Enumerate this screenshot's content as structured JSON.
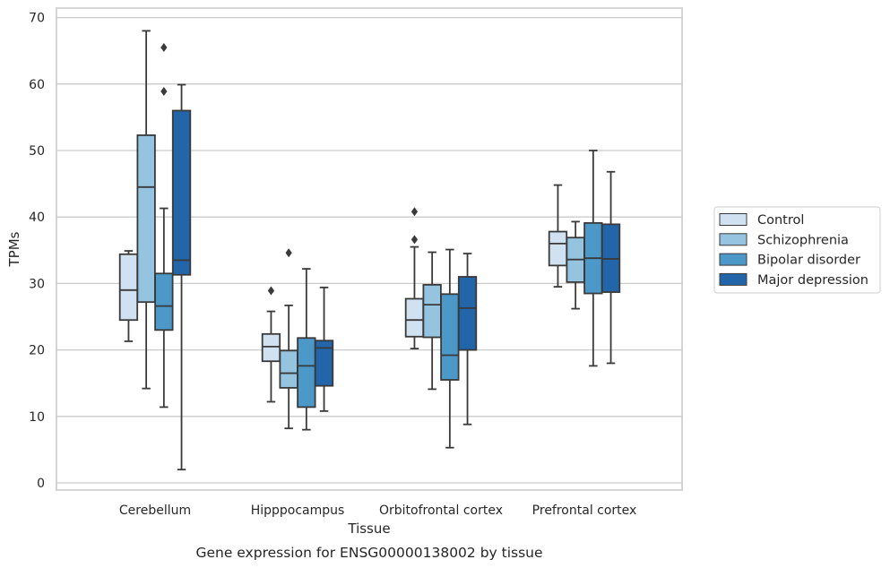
{
  "chart_data": {
    "type": "boxplot",
    "caption": "Gene expression for ENSG00000138002 by tissue",
    "xlabel": "Tissue",
    "ylabel": "TPMs",
    "ylim": [
      -1,
      71.5
    ],
    "yticks": [
      0,
      10,
      20,
      30,
      40,
      50,
      60,
      70
    ],
    "grid": "horizontal",
    "legend_position": "right",
    "categories": [
      "Cerebellum",
      "Hipppocampus",
      "Orbitofrontal cortex",
      "Prefrontal cortex"
    ],
    "series": [
      {
        "name": "Control",
        "color": "#d0e1f2",
        "boxes": [
          {
            "whisker_low": 21.3,
            "q1": 24.5,
            "median": 29.0,
            "q3": 34.4,
            "whisker_high": 34.9,
            "outliers": []
          },
          {
            "whisker_low": 12.2,
            "q1": 18.3,
            "median": 20.5,
            "q3": 22.4,
            "whisker_high": 25.8,
            "outliers": [
              28.9
            ]
          },
          {
            "whisker_low": 20.2,
            "q1": 22.0,
            "median": 24.5,
            "q3": 27.7,
            "whisker_high": 35.5,
            "outliers": [
              36.6,
              40.8
            ]
          },
          {
            "whisker_low": 29.5,
            "q1": 32.7,
            "median": 36.0,
            "q3": 37.8,
            "whisker_high": 44.8,
            "outliers": []
          }
        ]
      },
      {
        "name": "Schizophrenia",
        "color": "#94c4df",
        "boxes": [
          {
            "whisker_low": 14.2,
            "q1": 27.2,
            "median": 44.5,
            "q3": 52.3,
            "whisker_high": 68.0,
            "outliers": []
          },
          {
            "whisker_low": 8.2,
            "q1": 14.3,
            "median": 16.5,
            "q3": 19.9,
            "whisker_high": 26.7,
            "outliers": [
              34.6
            ]
          },
          {
            "whisker_low": 14.1,
            "q1": 21.9,
            "median": 26.8,
            "q3": 29.8,
            "whisker_high": 34.7,
            "outliers": []
          },
          {
            "whisker_low": 26.2,
            "q1": 30.2,
            "median": 33.6,
            "q3": 36.9,
            "whisker_high": 39.3,
            "outliers": []
          }
        ]
      },
      {
        "name": "Bipolar disorder",
        "color": "#4b98c9",
        "boxes": [
          {
            "whisker_low": 11.4,
            "q1": 23.0,
            "median": 26.6,
            "q3": 31.5,
            "whisker_high": 41.3,
            "outliers": [
              58.9,
              65.5
            ]
          },
          {
            "whisker_low": 8.0,
            "q1": 11.4,
            "median": 17.6,
            "q3": 21.8,
            "whisker_high": 32.2,
            "outliers": []
          },
          {
            "whisker_low": 5.3,
            "q1": 15.5,
            "median": 19.2,
            "q3": 28.4,
            "whisker_high": 35.1,
            "outliers": []
          },
          {
            "whisker_low": 17.6,
            "q1": 28.5,
            "median": 33.8,
            "q3": 39.1,
            "whisker_high": 50.0,
            "outliers": []
          }
        ]
      },
      {
        "name": "Major depression",
        "color": "#2265a9",
        "boxes": [
          {
            "whisker_low": 2.0,
            "q1": 31.3,
            "median": 33.5,
            "q3": 56.0,
            "whisker_high": 59.9,
            "outliers": []
          },
          {
            "whisker_low": 10.8,
            "q1": 14.6,
            "median": 20.3,
            "q3": 21.4,
            "whisker_high": 29.4,
            "outliers": []
          },
          {
            "whisker_low": 8.8,
            "q1": 20.0,
            "median": 26.3,
            "q3": 31.0,
            "whisker_high": 34.5,
            "outliers": []
          },
          {
            "whisker_low": 18.0,
            "q1": 28.7,
            "median": 33.7,
            "q3": 38.9,
            "whisker_high": 46.8,
            "outliers": []
          }
        ]
      }
    ]
  },
  "style": {
    "line_color": "#3a3a3a",
    "grid_color": "#cccccc",
    "frame_color": "#cccccc",
    "background": "#ffffff"
  }
}
